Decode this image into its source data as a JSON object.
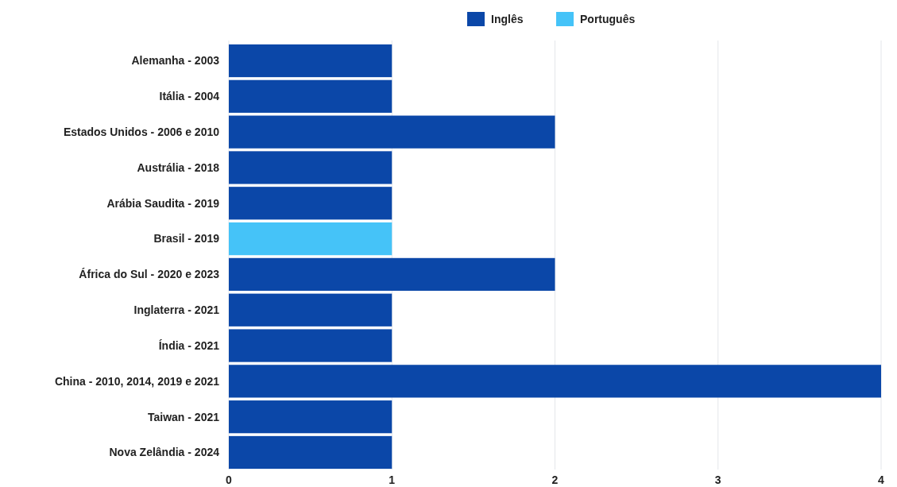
{
  "chart_data": {
    "type": "bar",
    "orientation": "horizontal",
    "categories": [
      "Alemanha - 2003",
      "Itália - 2004",
      "Estados Unidos - 2006 e 2010",
      "Austrália - 2018",
      "Arábia Saudita - 2019",
      "Brasil - 2019",
      "África do Sul - 2020 e 2023",
      "Inglaterra - 2021",
      "Índia - 2021",
      "China - 2010, 2014, 2019 e 2021",
      "Taiwan - 2021",
      "Nova Zelândia - 2024"
    ],
    "series": [
      {
        "name": "Inglês",
        "color": "#0b47a8",
        "values": [
          1,
          1,
          2,
          1,
          1,
          null,
          2,
          1,
          1,
          4,
          1,
          1
        ]
      },
      {
        "name": "Português",
        "color": "#45c3f8",
        "values": [
          null,
          null,
          null,
          null,
          null,
          1,
          null,
          null,
          null,
          null,
          null,
          null
        ]
      }
    ],
    "xlim": [
      0,
      4
    ],
    "xticks": [
      0,
      1,
      2,
      3,
      4
    ],
    "grid": "x",
    "legend": "top"
  }
}
